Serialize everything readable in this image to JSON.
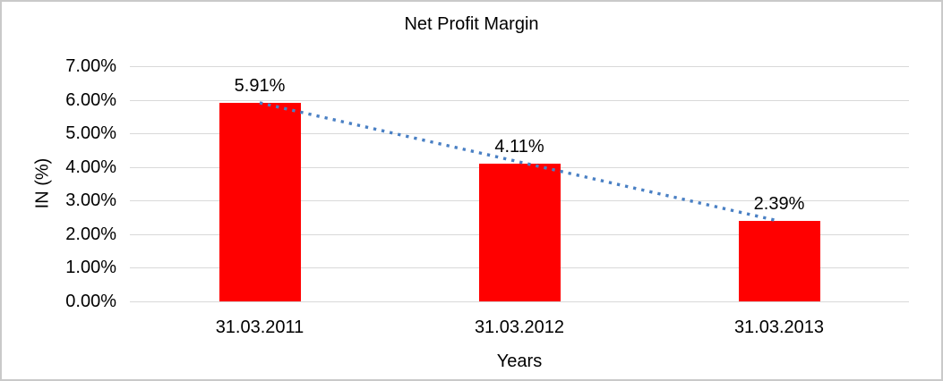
{
  "frame": {
    "background": "#ffffff",
    "border_color": "#c9c9c9"
  },
  "chart_data": {
    "type": "bar",
    "title": "Net Profit Margin",
    "categories": [
      "31.03.2011",
      "31.03.2012",
      "31.03.2013"
    ],
    "series": [
      {
        "name": "Net Profit Margin",
        "values": [
          5.91,
          4.11,
          2.39
        ]
      }
    ],
    "data_labels": [
      "5.91%",
      "4.11%",
      "2.39%"
    ],
    "xlabel": "Years",
    "ylabel": "IN (%)",
    "ylim": [
      0,
      7
    ],
    "ytick_labels": [
      "7.00%",
      "6.00%",
      "5.00%",
      "4.00%",
      "3.00%",
      "2.00%",
      "1.00%",
      "0.00%"
    ],
    "grid": "horizontal",
    "legend_position": "none",
    "bar_color": "#ff0000",
    "gridline_color": "#d9d9d9",
    "text_color": "#000000",
    "trendline": {
      "type": "linear",
      "line_style": "dotted",
      "color": "#4a80c4",
      "from_value": 5.91,
      "to_value": 2.39
    }
  }
}
